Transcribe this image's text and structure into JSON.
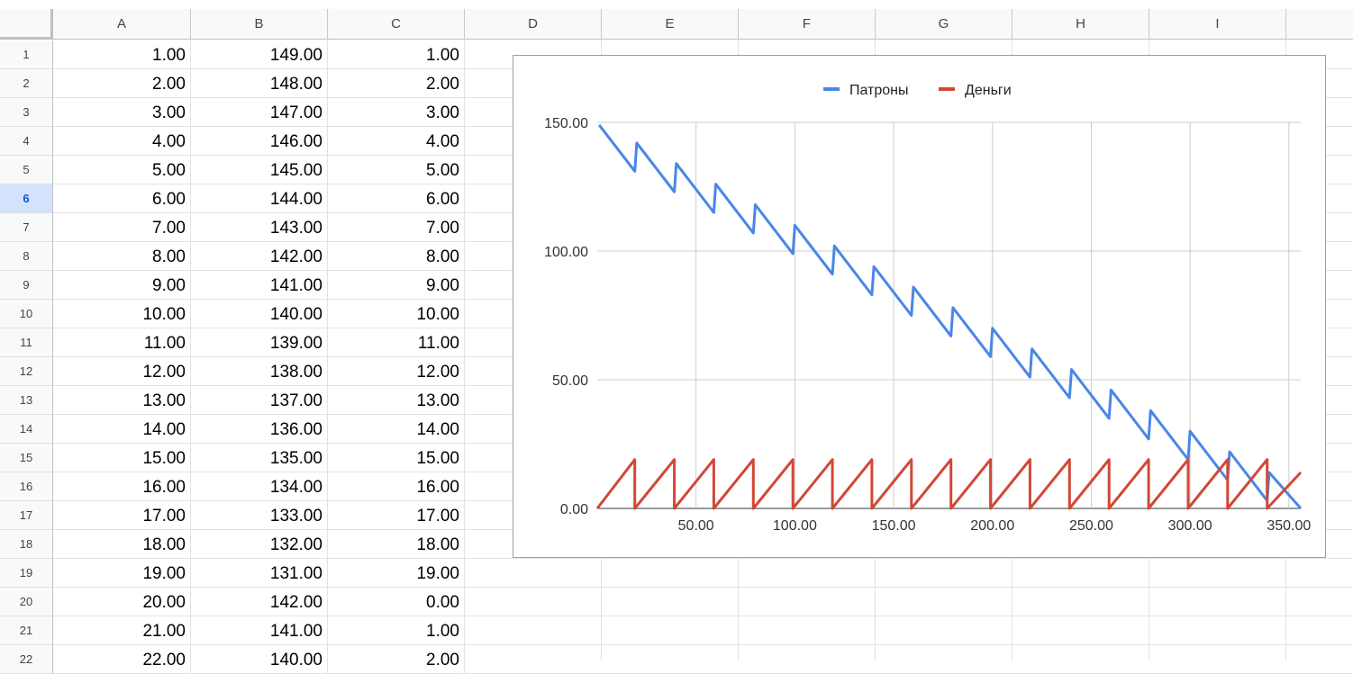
{
  "sheet": {
    "columns": [
      "A",
      "B",
      "C",
      "D",
      "E",
      "F",
      "G",
      "H",
      "I"
    ],
    "selected_row": 6,
    "rows": [
      {
        "n": "1",
        "a": "1.00",
        "b": "149.00",
        "c": "1.00"
      },
      {
        "n": "2",
        "a": "2.00",
        "b": "148.00",
        "c": "2.00"
      },
      {
        "n": "3",
        "a": "3.00",
        "b": "147.00",
        "c": "3.00"
      },
      {
        "n": "4",
        "a": "4.00",
        "b": "146.00",
        "c": "4.00"
      },
      {
        "n": "5",
        "a": "5.00",
        "b": "145.00",
        "c": "5.00"
      },
      {
        "n": "6",
        "a": "6.00",
        "b": "144.00",
        "c": "6.00"
      },
      {
        "n": "7",
        "a": "7.00",
        "b": "143.00",
        "c": "7.00"
      },
      {
        "n": "8",
        "a": "8.00",
        "b": "142.00",
        "c": "8.00"
      },
      {
        "n": "9",
        "a": "9.00",
        "b": "141.00",
        "c": "9.00"
      },
      {
        "n": "10",
        "a": "10.00",
        "b": "140.00",
        "c": "10.00"
      },
      {
        "n": "11",
        "a": "11.00",
        "b": "139.00",
        "c": "11.00"
      },
      {
        "n": "12",
        "a": "12.00",
        "b": "138.00",
        "c": "12.00"
      },
      {
        "n": "13",
        "a": "13.00",
        "b": "137.00",
        "c": "13.00"
      },
      {
        "n": "14",
        "a": "14.00",
        "b": "136.00",
        "c": "14.00"
      },
      {
        "n": "15",
        "a": "15.00",
        "b": "135.00",
        "c": "15.00"
      },
      {
        "n": "16",
        "a": "16.00",
        "b": "134.00",
        "c": "16.00"
      },
      {
        "n": "17",
        "a": "17.00",
        "b": "133.00",
        "c": "17.00"
      },
      {
        "n": "18",
        "a": "18.00",
        "b": "132.00",
        "c": "18.00"
      },
      {
        "n": "19",
        "a": "19.00",
        "b": "131.00",
        "c": "19.00"
      },
      {
        "n": "20",
        "a": "20.00",
        "b": "142.00",
        "c": "0.00"
      },
      {
        "n": "21",
        "a": "21.00",
        "b": "141.00",
        "c": "1.00"
      },
      {
        "n": "22",
        "a": "22.00",
        "b": "140.00",
        "c": "2.00"
      }
    ]
  },
  "chart_data": {
    "type": "line",
    "title": "",
    "xlabel": "",
    "ylabel": "",
    "xlim": [
      0,
      356
    ],
    "ylim": [
      0,
      150
    ],
    "grid": true,
    "legend_position": "top",
    "x_ticks": [
      "50.00",
      "100.00",
      "150.00",
      "200.00",
      "250.00",
      "300.00",
      "350.00"
    ],
    "y_ticks": [
      "0.00",
      "50.00",
      "100.00",
      "150.00"
    ],
    "series": [
      {
        "name": "Патроны",
        "color": "#4a86e8",
        "points": [
          [
            1,
            149
          ],
          [
            19,
            131
          ],
          [
            20,
            142
          ],
          [
            39,
            123
          ],
          [
            40,
            134
          ],
          [
            59,
            115
          ],
          [
            60,
            126
          ],
          [
            79,
            107
          ],
          [
            80,
            118
          ],
          [
            99,
            99
          ],
          [
            100,
            110
          ],
          [
            119,
            91
          ],
          [
            120,
            102
          ],
          [
            139,
            83
          ],
          [
            140,
            94
          ],
          [
            159,
            75
          ],
          [
            160,
            86
          ],
          [
            179,
            67
          ],
          [
            180,
            78
          ],
          [
            199,
            59
          ],
          [
            200,
            70
          ],
          [
            219,
            51
          ],
          [
            220,
            62
          ],
          [
            239,
            43
          ],
          [
            240,
            54
          ],
          [
            259,
            35
          ],
          [
            260,
            46
          ],
          [
            279,
            27
          ],
          [
            280,
            38
          ],
          [
            299,
            19
          ],
          [
            300,
            30
          ],
          [
            319,
            11
          ],
          [
            320,
            22
          ],
          [
            339,
            3
          ],
          [
            340,
            14
          ],
          [
            356,
            0
          ]
        ]
      },
      {
        "name": "Деньги",
        "color": "#d14836",
        "points": [
          [
            0,
            0
          ],
          [
            19,
            19
          ],
          [
            19,
            0
          ],
          [
            39,
            19
          ],
          [
            39,
            0
          ],
          [
            59,
            19
          ],
          [
            59,
            0
          ],
          [
            79,
            19
          ],
          [
            79,
            0
          ],
          [
            99,
            19
          ],
          [
            99,
            0
          ],
          [
            119,
            19
          ],
          [
            119,
            0
          ],
          [
            139,
            19
          ],
          [
            139,
            0
          ],
          [
            159,
            19
          ],
          [
            159,
            0
          ],
          [
            179,
            19
          ],
          [
            179,
            0
          ],
          [
            199,
            19
          ],
          [
            199,
            0
          ],
          [
            219,
            19
          ],
          [
            219,
            0
          ],
          [
            239,
            19
          ],
          [
            239,
            0
          ],
          [
            259,
            19
          ],
          [
            259,
            0
          ],
          [
            279,
            19
          ],
          [
            279,
            0
          ],
          [
            299,
            19
          ],
          [
            299,
            0
          ],
          [
            319,
            19
          ],
          [
            319,
            0
          ],
          [
            339,
            19
          ],
          [
            339,
            0
          ],
          [
            356,
            14
          ]
        ]
      }
    ]
  }
}
